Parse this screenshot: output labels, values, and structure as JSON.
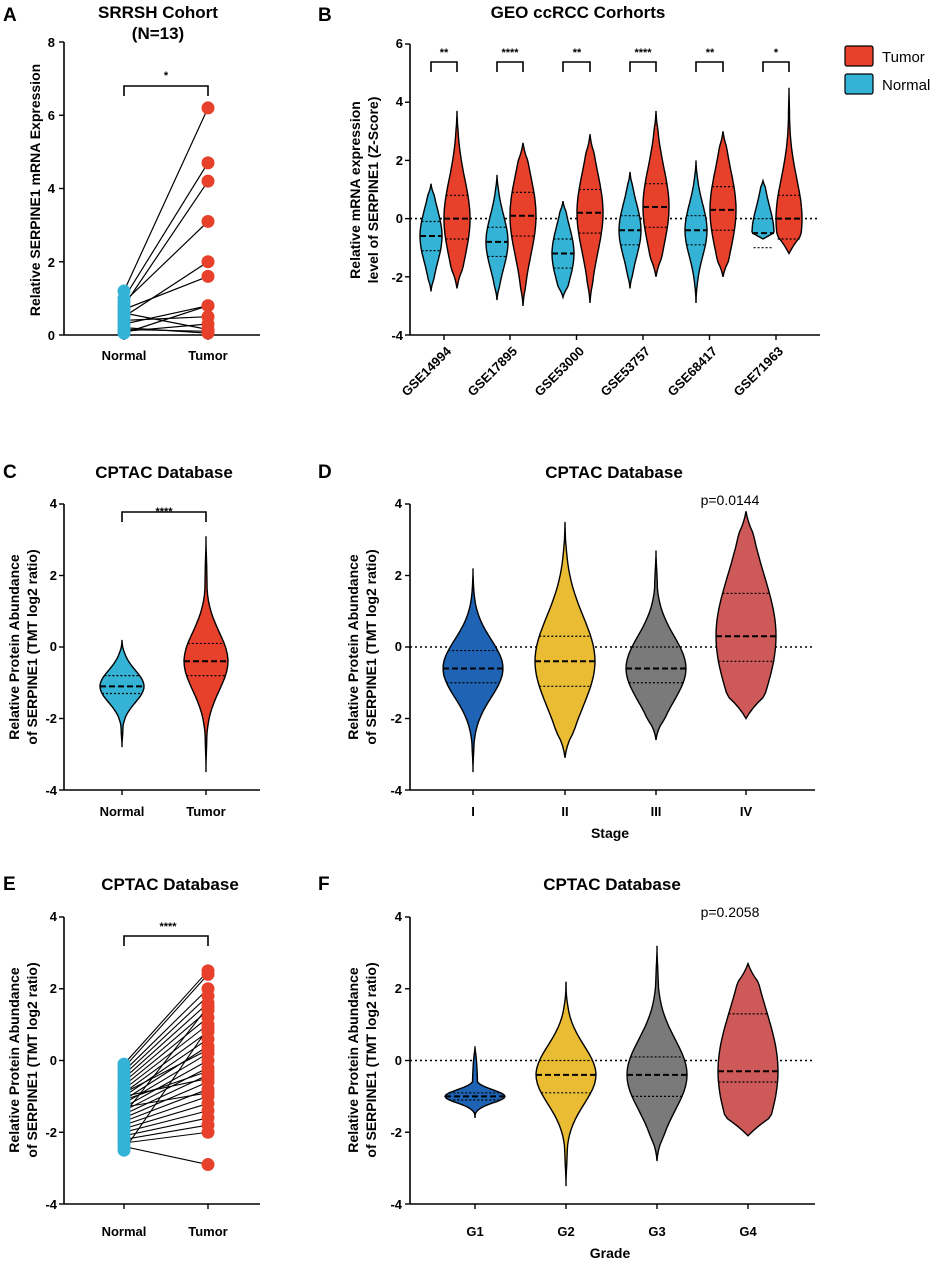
{
  "colors": {
    "tumor": "#e8412b",
    "normal": "#34b3d6",
    "stage_I": "#1f63b4",
    "stage_II": "#e9bc34",
    "stage_III": "#7a7a7a",
    "stage_IV": "#cd5a58"
  },
  "chart_data": [
    {
      "id": "A",
      "type": "paired-scatter",
      "panel_label": "A",
      "title": "SRRSH Cohort",
      "subtitle": "(N=13)",
      "ylabel": "Relative SERPINE1 mRNA Expression",
      "ylim": [
        0,
        8
      ],
      "yticks": [
        "0",
        "2",
        "4",
        "6",
        "8"
      ],
      "categories": [
        "Normal",
        "Tumor"
      ],
      "series": [
        {
          "name": "Normal",
          "color": "#34b3d6",
          "values": [
            1.2,
            1.0,
            0.8,
            0.9,
            0.5,
            0.7,
            0.3,
            0.4,
            0.1,
            0.6,
            0.2,
            0.05,
            0.15
          ]
        },
        {
          "name": "Tumor",
          "color": "#e8412b",
          "values": [
            6.2,
            4.7,
            4.2,
            3.1,
            2.0,
            1.6,
            0.8,
            0.5,
            0.3,
            0.15,
            0.05,
            0.8,
            0.1
          ]
        }
      ],
      "significance": "*"
    },
    {
      "id": "B",
      "type": "violin-grouped",
      "panel_label": "B",
      "title": "GEO ccRCC Corhorts",
      "ylabel": "Relative mRNA expression level of SERPINE1 (Z-Score)",
      "ylabel_lines": [
        "Relative mRNA expression",
        "level of SERPINE1 (Z-Score)"
      ],
      "ylim": [
        -4,
        6
      ],
      "yticks": [
        "-4",
        "-2",
        "0",
        "2",
        "4",
        "6"
      ],
      "categories": [
        "GSE14994",
        "GSE17895",
        "GSE53000",
        "GSE53757",
        "GSE68417",
        "GSE71963"
      ],
      "legend": [
        {
          "name": "Tumor",
          "color": "#e8412b"
        },
        {
          "name": "Normal",
          "color": "#34b3d6"
        }
      ],
      "series": [
        {
          "name": "Normal",
          "median": [
            -0.6,
            -0.8,
            -1.2,
            -0.4,
            -0.4,
            -0.5
          ],
          "min": [
            -2.5,
            -2.8,
            -2.7,
            -2.4,
            -2.9,
            -0.7
          ],
          "max": [
            1.2,
            1.5,
            0.6,
            1.6,
            2.0,
            1.3
          ]
        },
        {
          "name": "Tumor",
          "median": [
            0.0,
            0.1,
            0.2,
            0.4,
            0.3,
            0.0
          ],
          "min": [
            -2.4,
            -3.0,
            -2.9,
            -2.0,
            -2.0,
            -1.2
          ],
          "max": [
            3.7,
            2.6,
            2.9,
            3.7,
            3.0,
            4.5
          ]
        }
      ],
      "significance": [
        "**",
        "****",
        "**",
        "****",
        "**",
        "*"
      ]
    },
    {
      "id": "C",
      "type": "violin",
      "panel_label": "C",
      "title": "CPTAC Database",
      "ylabel": "Relative Protein Abundance of SERPINE1 (TMT log2 ratio)",
      "ylabel_lines": [
        "Relative Protein Abundance",
        "of SERPINE1 (TMT log2 ratio)"
      ],
      "ylim": [
        -4,
        4
      ],
      "yticks": [
        "-4",
        "-2",
        "0",
        "2",
        "4"
      ],
      "categories": [
        "Normal",
        "Tumor"
      ],
      "series": [
        {
          "name": "Normal",
          "median": -1.1,
          "q1": -1.3,
          "q3": -0.8,
          "min": -2.8,
          "max": 0.2
        },
        {
          "name": "Tumor",
          "median": -0.4,
          "q1": -0.8,
          "q3": 0.1,
          "min": -3.5,
          "max": 3.1
        }
      ],
      "significance": "****"
    },
    {
      "id": "D",
      "type": "violin",
      "panel_label": "D",
      "title": "CPTAC Database",
      "ylabel": "Relative Protein Abundance of SERPINE1 (TMT log2 ratio)",
      "ylabel_lines": [
        "Relative Protein Abundance",
        "of SERPINE1 (TMT log2 ratio)"
      ],
      "xlabel": "Stage",
      "ylim": [
        -4,
        4
      ],
      "yticks": [
        "-4",
        "-2",
        "0",
        "2",
        "4"
      ],
      "categories": [
        "I",
        "II",
        "III",
        "IV"
      ],
      "series": [
        {
          "name": "I",
          "median": -0.6,
          "q1": -1.0,
          "q3": -0.1,
          "min": -3.5,
          "max": 2.2
        },
        {
          "name": "II",
          "median": -0.4,
          "q1": -1.1,
          "q3": 0.3,
          "min": -3.1,
          "max": 3.5
        },
        {
          "name": "III",
          "median": -0.6,
          "q1": -1.0,
          "q3": 0.0,
          "min": -2.6,
          "max": 2.7
        },
        {
          "name": "IV",
          "median": 0.3,
          "q1": -0.4,
          "q3": 1.5,
          "min": -2.0,
          "max": 3.8
        }
      ],
      "annotation": "p=0.0144"
    },
    {
      "id": "E",
      "type": "paired-scatter",
      "panel_label": "E",
      "title": "CPTAC Database",
      "ylabel": "Relative Protein Abundance of SERPINE1 (TMT log2 ratio)",
      "ylabel_lines": [
        "Relative Protein Abundance",
        "of SERPINE1 (TMT log2 ratio)"
      ],
      "ylim": [
        -4,
        4
      ],
      "yticks": [
        "-4",
        "-2",
        "0",
        "2",
        "4"
      ],
      "categories": [
        "Normal",
        "Tumor"
      ],
      "series": [
        {
          "name": "Normal",
          "color": "#34b3d6",
          "values": [
            -0.1,
            -0.2,
            -0.3,
            -0.4,
            -0.5,
            -0.6,
            -0.7,
            -0.8,
            -0.9,
            -1.0,
            -1.1,
            -1.2,
            -1.3,
            -1.4,
            -1.5,
            -1.6,
            -1.7,
            -1.8,
            -1.9,
            -2.0,
            -2.1,
            -2.2,
            -2.3,
            -2.4,
            -2.5,
            -0.9,
            -1.1,
            -1.3,
            -1.5,
            -1.0
          ]
        },
        {
          "name": "Tumor",
          "color": "#e8412b",
          "values": [
            2.5,
            2.4,
            2.0,
            1.8,
            1.6,
            1.4,
            1.2,
            1.0,
            0.8,
            0.6,
            0.4,
            0.2,
            0.0,
            -0.2,
            -0.4,
            -0.6,
            -0.8,
            -1.0,
            -1.2,
            -1.4,
            -1.6,
            -1.8,
            -2.0,
            -2.9,
            0.9,
            0.3,
            -0.3,
            -0.9,
            1.5,
            -0.5
          ]
        }
      ],
      "significance": "****"
    },
    {
      "id": "F",
      "type": "violin",
      "panel_label": "F",
      "title": "CPTAC Database",
      "ylabel": "Relative Protein Abundance of SERPINE1 (TMT log2 ratio)",
      "ylabel_lines": [
        "Relative Protein Abundance",
        "of SERPINE1 (TMT log2 ratio)"
      ],
      "xlabel": "Grade",
      "ylim": [
        -4,
        4
      ],
      "yticks": [
        "-4",
        "-2",
        "0",
        "2",
        "4"
      ],
      "categories": [
        "G1",
        "G2",
        "G3",
        "G4"
      ],
      "series": [
        {
          "name": "G1",
          "median": -1.0,
          "q1": -1.1,
          "q3": -0.9,
          "min": -1.6,
          "max": 0.4
        },
        {
          "name": "G2",
          "median": -0.4,
          "q1": -0.9,
          "q3": 0.0,
          "min": -3.5,
          "max": 2.2
        },
        {
          "name": "G3",
          "median": -0.4,
          "q1": -1.0,
          "q3": 0.1,
          "min": -2.8,
          "max": 3.2
        },
        {
          "name": "G4",
          "median": -0.3,
          "q1": -0.6,
          "q3": 1.3,
          "min": -2.1,
          "max": 2.7
        }
      ],
      "annotation": "p=0.2058"
    }
  ]
}
